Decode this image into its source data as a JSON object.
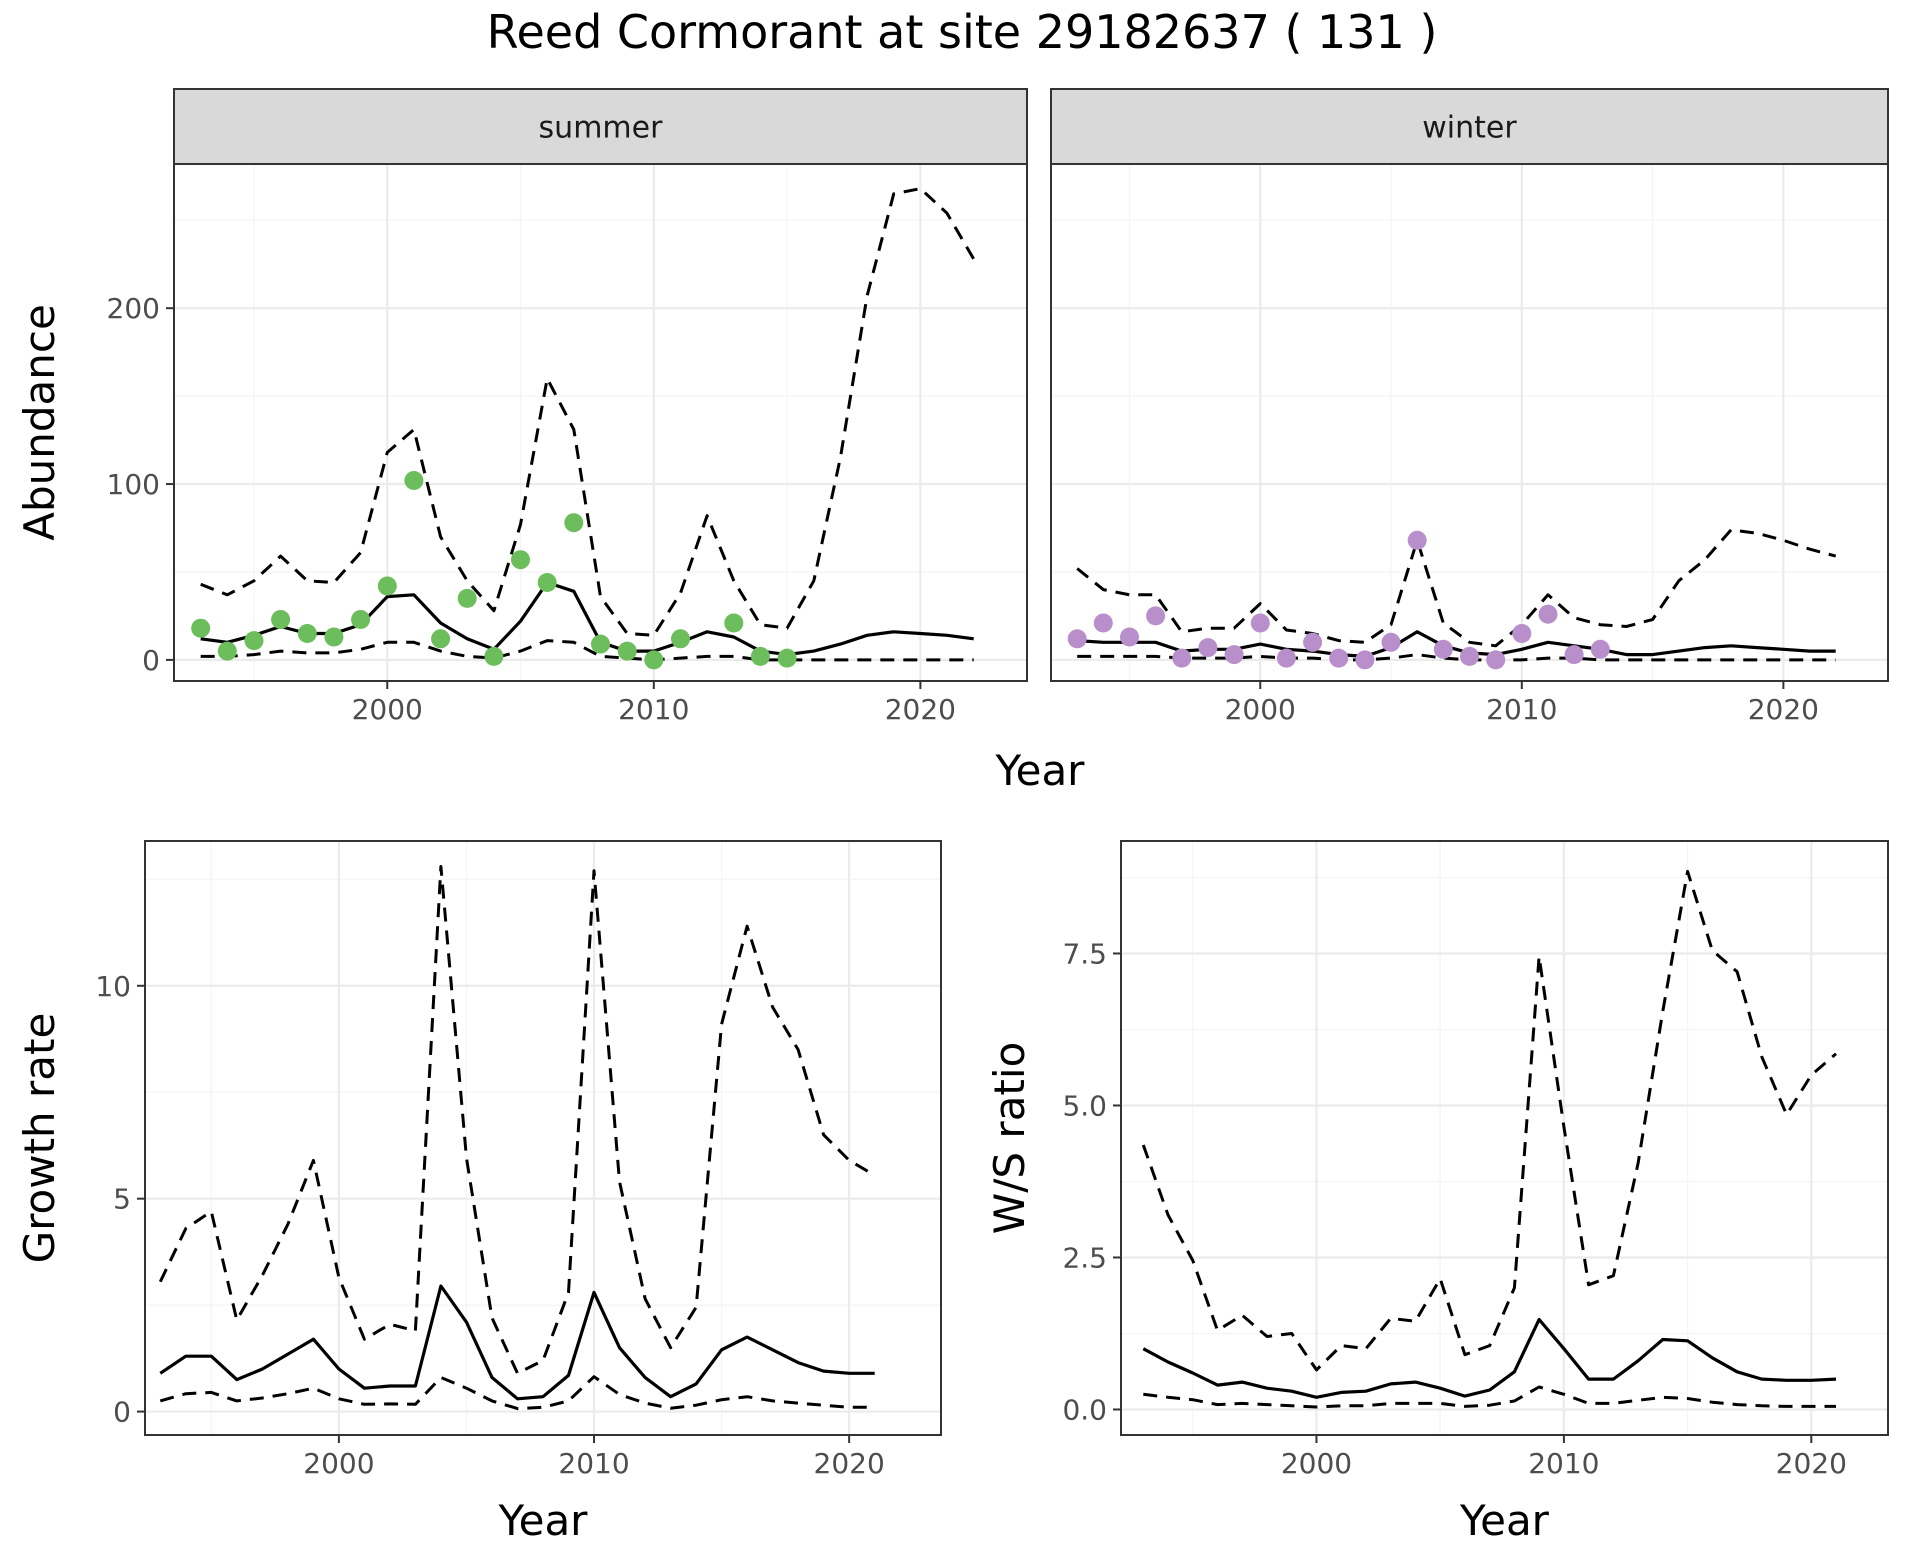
{
  "title": "Reed Cormorant at site 29182637 ( 131 )",
  "colors": {
    "summer_points": "#6cbd5b",
    "winter_points": "#b98fcb",
    "lines": "#000000",
    "strip_bg": "#d9d9d9"
  },
  "chart_data": [
    {
      "type": "line",
      "id": "abundance-summer",
      "strip": "summer",
      "ylabel": "Abundance",
      "xlabel": "Year",
      "xlim": [
        1992,
        2024
      ],
      "ylim": [
        -12,
        282
      ],
      "xticks": [
        2000,
        2010,
        2020
      ],
      "yticks": [
        0,
        100,
        200
      ],
      "x": [
        1993,
        1994,
        1995,
        1996,
        1997,
        1998,
        1999,
        2000,
        2001,
        2002,
        2003,
        2004,
        2005,
        2006,
        2007,
        2008,
        2009,
        2010,
        2011,
        2012,
        2013,
        2014,
        2015,
        2016,
        2017,
        2018,
        2019,
        2020,
        2021,
        2022
      ],
      "series": [
        {
          "role": "median",
          "values": [
            12,
            10,
            14,
            19,
            15,
            15,
            20,
            36,
            37,
            21,
            12,
            6,
            22,
            44,
            39,
            10,
            5,
            5,
            10,
            16,
            13,
            5,
            3,
            5,
            9,
            14,
            16,
            15,
            14,
            12
          ]
        },
        {
          "role": "upper",
          "values": [
            43,
            37,
            45,
            59,
            45,
            44,
            61,
            118,
            131,
            70,
            45,
            28,
            77,
            160,
            131,
            36,
            15,
            14,
            38,
            82,
            45,
            20,
            18,
            45,
            115,
            207,
            265,
            268,
            254,
            228
          ]
        },
        {
          "role": "lower",
          "values": [
            2,
            2,
            3,
            5,
            4,
            4,
            6,
            10,
            10,
            5,
            2,
            1,
            5,
            11,
            10,
            2,
            1,
            0,
            1,
            2,
            2,
            0,
            0,
            0,
            0,
            0,
            0,
            0,
            0,
            0
          ]
        }
      ],
      "points": {
        "x": [
          1993,
          1994,
          1995,
          1996,
          1997,
          1998,
          1999,
          2000,
          2001,
          2002,
          2003,
          2004,
          2005,
          2006,
          2007,
          2008,
          2009,
          2010,
          2011,
          2013,
          2014,
          2015
        ],
        "y": [
          18,
          5,
          11,
          23,
          15,
          13,
          23,
          42,
          102,
          12,
          35,
          2,
          57,
          44,
          78,
          9,
          5,
          0,
          12,
          21,
          2,
          1
        ]
      }
    },
    {
      "type": "line",
      "id": "abundance-winter",
      "strip": "winter",
      "ylabel": "",
      "xlabel": "",
      "xlim": [
        1992,
        2024
      ],
      "ylim": [
        -12,
        282
      ],
      "xticks": [
        2000,
        2010,
        2020
      ],
      "yticks": [],
      "x": [
        1993,
        1994,
        1995,
        1996,
        1997,
        1998,
        1999,
        2000,
        2001,
        2002,
        2003,
        2004,
        2005,
        2006,
        2007,
        2008,
        2009,
        2010,
        2011,
        2012,
        2013,
        2014,
        2015,
        2016,
        2017,
        2018,
        2019,
        2020,
        2021,
        2022
      ],
      "series": [
        {
          "role": "median",
          "values": [
            11,
            10,
            10,
            10,
            5,
            6,
            6,
            9,
            6,
            5,
            3,
            2,
            7,
            16,
            8,
            4,
            3,
            6,
            10,
            8,
            6,
            3,
            3,
            5,
            7,
            8,
            7,
            6,
            5,
            5
          ]
        },
        {
          "role": "upper",
          "values": [
            52,
            40,
            37,
            37,
            16,
            18,
            18,
            32,
            17,
            15,
            11,
            10,
            20,
            68,
            21,
            10,
            8,
            20,
            37,
            24,
            20,
            19,
            23,
            45,
            57,
            74,
            72,
            68,
            63,
            59
          ]
        },
        {
          "role": "lower",
          "values": [
            2,
            2,
            2,
            2,
            1,
            1,
            1,
            2,
            1,
            1,
            0,
            0,
            1,
            3,
            1,
            0,
            0,
            0,
            1,
            1,
            0,
            0,
            0,
            0,
            0,
            0,
            0,
            0,
            0,
            0
          ]
        }
      ],
      "points": {
        "x": [
          1993,
          1994,
          1995,
          1996,
          1997,
          1998,
          1999,
          2000,
          2001,
          2002,
          2003,
          2004,
          2005,
          2006,
          2007,
          2008,
          2009,
          2010,
          2011,
          2012,
          2013
        ],
        "y": [
          12,
          21,
          13,
          25,
          1,
          7,
          3,
          21,
          1,
          10,
          1,
          0,
          10,
          68,
          6,
          2,
          0,
          15,
          26,
          3,
          6
        ]
      }
    },
    {
      "type": "line",
      "id": "growth-rate",
      "ylabel": "Growth rate",
      "xlabel": "Year",
      "xlim": [
        1992.4,
        2023.6
      ],
      "ylim": [
        -0.55,
        13.4
      ],
      "xticks": [
        2000,
        2010,
        2020
      ],
      "yticks": [
        0,
        5,
        10
      ],
      "x": [
        1993,
        1994,
        1995,
        1996,
        1997,
        1998,
        1999,
        2000,
        2001,
        2002,
        2003,
        2004,
        2005,
        2006,
        2007,
        2008,
        2009,
        2010,
        2011,
        2012,
        2013,
        2014,
        2015,
        2016,
        2017,
        2018,
        2019,
        2020,
        2021
      ],
      "series": [
        {
          "role": "median",
          "values": [
            0.9,
            1.3,
            1.3,
            0.75,
            1.0,
            1.35,
            1.7,
            1.0,
            0.55,
            0.6,
            0.6,
            2.95,
            2.1,
            0.8,
            0.3,
            0.35,
            0.85,
            2.8,
            1.5,
            0.8,
            0.35,
            0.65,
            1.45,
            1.75,
            1.45,
            1.15,
            0.95,
            0.9,
            0.9
          ]
        },
        {
          "role": "upper",
          "values": [
            3.05,
            4.3,
            4.7,
            2.15,
            3.2,
            4.4,
            5.9,
            3.15,
            1.7,
            2.05,
            1.9,
            12.8,
            5.95,
            2.2,
            0.9,
            1.2,
            2.8,
            12.7,
            5.4,
            2.65,
            1.5,
            2.45,
            9.1,
            11.4,
            9.5,
            8.5,
            6.5,
            5.9,
            5.55
          ]
        },
        {
          "role": "lower",
          "values": [
            0.25,
            0.42,
            0.45,
            0.25,
            0.32,
            0.42,
            0.55,
            0.3,
            0.17,
            0.18,
            0.17,
            0.8,
            0.55,
            0.25,
            0.07,
            0.1,
            0.25,
            0.82,
            0.4,
            0.2,
            0.08,
            0.15,
            0.28,
            0.35,
            0.25,
            0.2,
            0.15,
            0.1,
            0.1
          ]
        }
      ]
    },
    {
      "type": "line",
      "id": "ws-ratio",
      "ylabel": "W/S ratio",
      "xlabel": "Year",
      "xlim": [
        1992.1,
        2023.1
      ],
      "ylim": [
        -0.42,
        9.35
      ],
      "xticks": [
        2000,
        2010,
        2020
      ],
      "yticks": [
        0,
        2.5,
        5,
        7.5
      ],
      "ytick_labels": [
        "0.0",
        "2.5",
        "5.0",
        "7.5"
      ],
      "x": [
        1993,
        1994,
        1995,
        1996,
        1997,
        1998,
        1999,
        2000,
        2001,
        2002,
        2003,
        2004,
        2005,
        2006,
        2007,
        2008,
        2009,
        2010,
        2011,
        2012,
        2013,
        2014,
        2015,
        2016,
        2017,
        2018,
        2019,
        2020,
        2021
      ],
      "series": [
        {
          "role": "median",
          "values": [
            1.0,
            0.78,
            0.6,
            0.4,
            0.45,
            0.35,
            0.3,
            0.2,
            0.28,
            0.3,
            0.42,
            0.45,
            0.35,
            0.22,
            0.32,
            0.62,
            1.48,
            1.0,
            0.5,
            0.5,
            0.8,
            1.15,
            1.13,
            0.85,
            0.62,
            0.5,
            0.48,
            0.48,
            0.5
          ]
        },
        {
          "role": "upper",
          "values": [
            4.35,
            3.2,
            2.45,
            1.3,
            1.55,
            1.2,
            1.25,
            0.65,
            1.05,
            1.0,
            1.5,
            1.45,
            2.15,
            0.9,
            1.05,
            2.0,
            7.45,
            4.65,
            2.05,
            2.2,
            4.05,
            6.55,
            8.85,
            7.55,
            7.2,
            5.8,
            4.85,
            5.5,
            5.85
          ]
        },
        {
          "role": "lower",
          "values": [
            0.25,
            0.2,
            0.16,
            0.08,
            0.1,
            0.08,
            0.06,
            0.04,
            0.06,
            0.06,
            0.1,
            0.1,
            0.1,
            0.05,
            0.07,
            0.14,
            0.37,
            0.25,
            0.1,
            0.1,
            0.15,
            0.2,
            0.18,
            0.12,
            0.08,
            0.06,
            0.05,
            0.05,
            0.05
          ]
        }
      ]
    }
  ]
}
